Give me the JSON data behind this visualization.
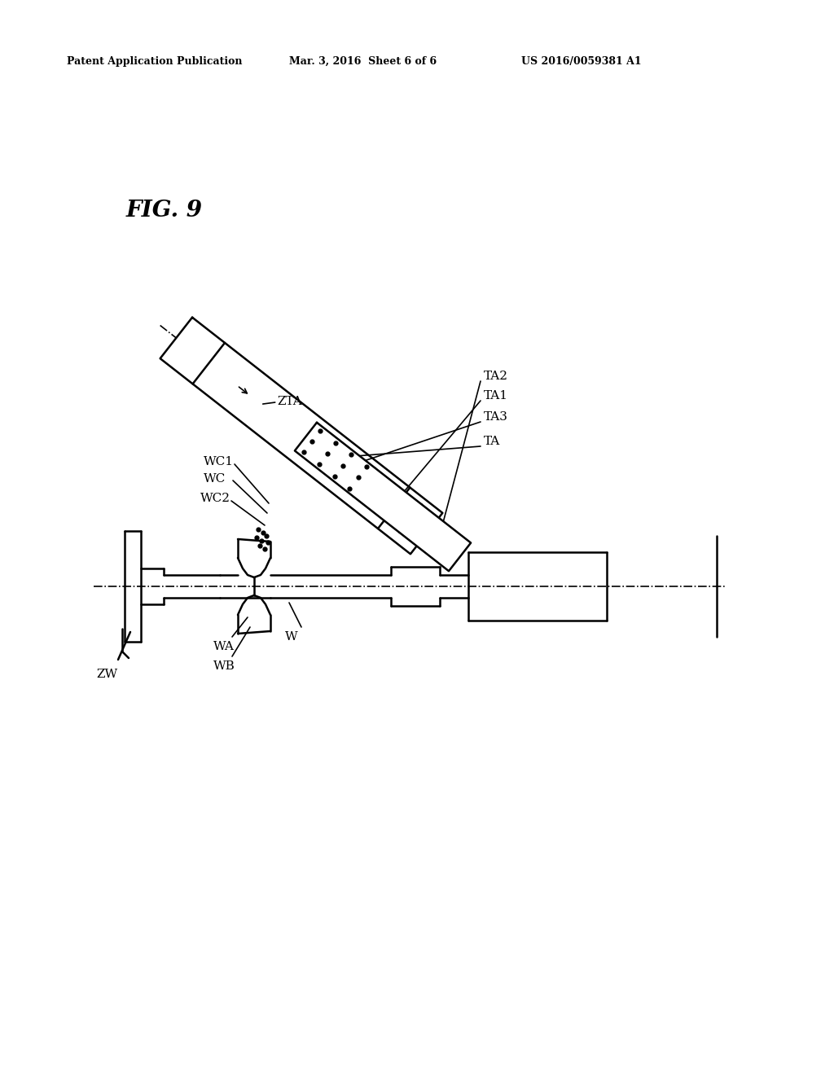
{
  "bg_color": "#ffffff",
  "line_color": "#000000",
  "header_left": "Patent Application Publication",
  "header_mid": "Mar. 3, 2016  Sheet 6 of 6",
  "header_right": "US 2016/0059381 A1",
  "fig_label": "FIG. 9"
}
